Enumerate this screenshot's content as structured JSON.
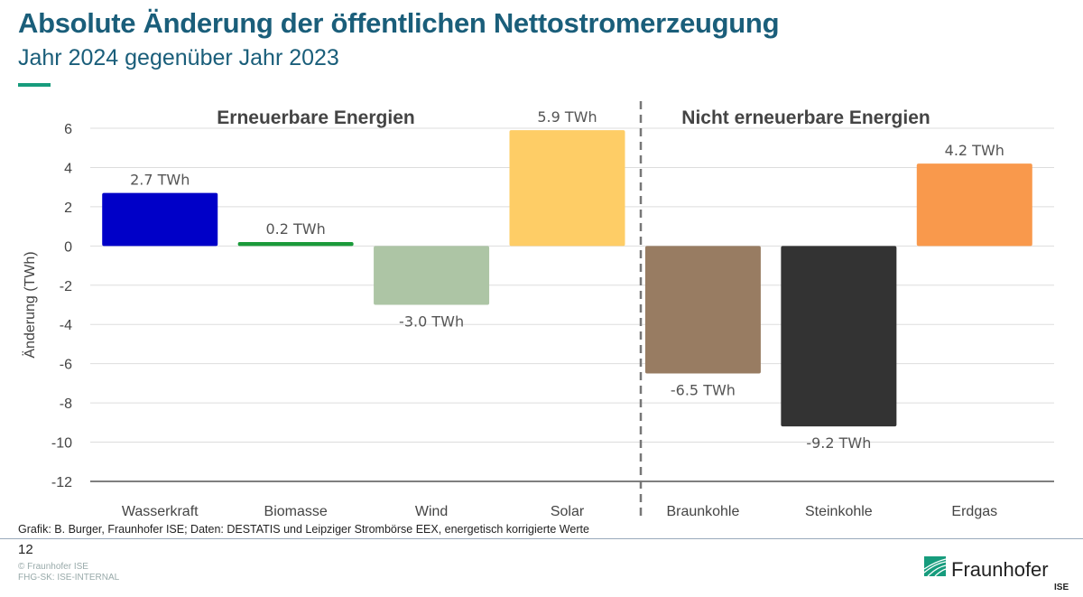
{
  "header": {
    "title": "Absolute Änderung der öffentlichen Nettostromerzeugung",
    "subtitle": "Jahr 2024 gegenüber Jahr 2023"
  },
  "footer": {
    "source": "Grafik: B. Burger, Fraunhofer ISE; Daten: DESTATIS und Leipziger Strombörse EEX, energetisch korrigierte Werte",
    "page": "12",
    "copyright": "© Fraunhofer ISE",
    "classification": "FHG-SK: ISE-INTERNAL",
    "logo_text": "Fraunhofer",
    "logo_sub": "ISE"
  },
  "chart_data": {
    "type": "bar",
    "ylabel": "Änderung (TWh)",
    "ylim": [
      -12,
      6
    ],
    "yticks": [
      "6",
      "4",
      "2",
      "0",
      "-2",
      "-4",
      "-6",
      "-8",
      "-10",
      "-12"
    ],
    "grid": true,
    "group_labels": [
      "Erneuerbare Energien",
      "Nicht erneuerbare Energien"
    ],
    "categories": [
      "Wasserkraft",
      "Biomasse",
      "Wind",
      "Solar",
      "Braunkohle",
      "Steinkohle",
      "Erdgas"
    ],
    "values": [
      2.7,
      0.2,
      -3.0,
      5.9,
      -6.5,
      -9.2,
      4.2
    ],
    "data_labels": [
      "2.7 TWh",
      "0.2 TWh",
      "-3.0 TWh",
      "5.9 TWh",
      "-6.5 TWh",
      "-9.2 TWh",
      "4.2 TWh"
    ],
    "colors": [
      "#0000c8",
      "#1a9a3a",
      "#adc5a5",
      "#fecd66",
      "#987c62",
      "#333333",
      "#f9994c"
    ]
  }
}
